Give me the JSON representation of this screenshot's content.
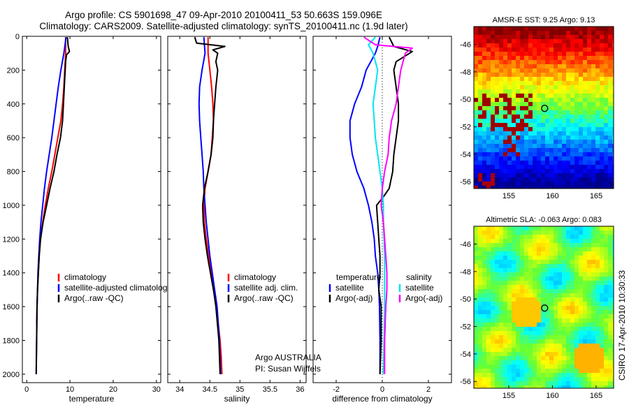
{
  "title": {
    "line1": "Argo profile: CS 5901698_47 09-Apr-2010 20100411_53 50.663S 159.096E",
    "line2": "Climatology: CARS2009. Satellite-adjusted climatology: synTS_20100411.nc (1.9d later)"
  },
  "annotation": {
    "program": "Argo AUSTRALIA",
    "pi": "PI: Susan Wijffels"
  },
  "side_stamp": "CSIRO 17-Apr-2010 10:30:33",
  "colors": {
    "red": "#ff0000",
    "blue": "#0000ff",
    "black": "#000000",
    "cyan": "#00e5ee",
    "magenta": "#ff00ff"
  },
  "chart_data": [
    {
      "id": "temperature",
      "type": "line",
      "xlabel": "temperature",
      "xlim": [
        -1,
        31
      ],
      "ylim": [
        2050,
        0
      ],
      "xticks": [
        0,
        10,
        20,
        30
      ],
      "yticks": [
        0,
        200,
        400,
        600,
        800,
        1000,
        1200,
        1400,
        1600,
        1800,
        2000
      ],
      "legend": {
        "placement": "lower-right",
        "entries": [
          "climatology",
          "satellite-adjusted climatology",
          "Argo(..raw -QC)"
        ]
      },
      "series": [
        {
          "name": "climatology",
          "color": "red",
          "y": [
            5,
            100,
            200,
            300,
            400,
            500,
            600,
            700,
            800,
            900,
            1000,
            1100,
            1200,
            1300,
            1400,
            1500,
            1600,
            1700
          ],
          "x": [
            9.0,
            9.0,
            8.8,
            8.6,
            8.3,
            7.9,
            7.2,
            6.5,
            5.8,
            5.0,
            4.3,
            3.7,
            3.2,
            2.9,
            2.7,
            2.5,
            2.4,
            2.3
          ]
        },
        {
          "name": "satellite-adjusted climatology",
          "color": "blue",
          "y": [
            5,
            100,
            200,
            300,
            400,
            500,
            600,
            700,
            800,
            900,
            1000,
            1100,
            1200,
            1300,
            1400,
            1500,
            1600,
            1800,
            2000
          ],
          "x": [
            9.1,
            8.6,
            7.9,
            7.3,
            6.8,
            6.3,
            5.8,
            5.2,
            4.6,
            4.1,
            3.7,
            3.3,
            3.0,
            2.8,
            2.6,
            2.5,
            2.4,
            2.3,
            2.2
          ]
        },
        {
          "name": "Argo(..raw -QC)",
          "color": "black",
          "y": [
            5,
            60,
            90,
            110,
            150,
            200,
            300,
            400,
            500,
            600,
            700,
            800,
            900,
            1000,
            1100,
            1200,
            1300,
            1400,
            1500,
            1600,
            1800,
            2000
          ],
          "x": [
            9.4,
            9.6,
            9.9,
            9.2,
            9.0,
            8.9,
            8.7,
            8.5,
            8.3,
            7.8,
            7.0,
            6.3,
            5.4,
            4.6,
            3.8,
            3.2,
            2.9,
            2.7,
            2.5,
            2.4,
            2.3,
            2.2
          ]
        }
      ]
    },
    {
      "id": "salinity",
      "type": "line",
      "xlabel": "salinity",
      "xlim": [
        33.8,
        36.1
      ],
      "ylim": [
        2050,
        0
      ],
      "xticks": [
        34,
        34.5,
        35,
        35.5,
        36
      ],
      "yticks": [
        0,
        200,
        400,
        600,
        800,
        1000,
        1200,
        1400,
        1600,
        1800,
        2000
      ],
      "legend": {
        "placement": "lower-right",
        "entries": [
          "climatology",
          "satellite adj. clim.",
          "Argo(..raw -QC)"
        ]
      },
      "series": [
        {
          "name": "climatology",
          "color": "red",
          "y": [
            5,
            100,
            200,
            300,
            400,
            500,
            600,
            700,
            800,
            900,
            1000,
            1100,
            1200,
            1300,
            1400,
            1500,
            1600,
            1700,
            1800,
            1900,
            2000
          ],
          "x": [
            34.47,
            34.47,
            34.5,
            34.53,
            34.55,
            34.56,
            34.54,
            34.52,
            34.47,
            34.42,
            34.4,
            34.41,
            34.44,
            34.48,
            34.53,
            34.57,
            34.61,
            34.64,
            34.67,
            34.69,
            34.7
          ]
        },
        {
          "name": "satellite adj. clim.",
          "color": "blue",
          "y": [
            5,
            100,
            200,
            300,
            400,
            500,
            600,
            700,
            800,
            900,
            1000,
            1100,
            1200,
            1300,
            1400,
            1500,
            1600,
            1700,
            1800,
            1900,
            2000
          ],
          "x": [
            34.4,
            34.42,
            34.37,
            34.33,
            34.32,
            34.33,
            34.35,
            34.37,
            34.39,
            34.4,
            34.42,
            34.44,
            34.47,
            34.5,
            34.54,
            34.58,
            34.62,
            34.64,
            34.66,
            34.67,
            34.68
          ]
        },
        {
          "name": "Argo(..raw -QC)",
          "color": "black",
          "y": [
            5,
            40,
            60,
            80,
            100,
            150,
            200,
            300,
            400,
            500,
            600,
            700,
            800,
            900,
            1000,
            1100,
            1200,
            1300,
            1400,
            1500,
            1600,
            1800,
            2000
          ],
          "x": [
            34.25,
            34.28,
            34.75,
            34.55,
            34.63,
            34.6,
            34.63,
            34.6,
            34.58,
            34.56,
            34.55,
            34.52,
            34.47,
            34.41,
            34.38,
            34.39,
            34.42,
            34.46,
            34.51,
            34.56,
            34.6,
            34.65,
            34.67
          ]
        }
      ]
    },
    {
      "id": "difference",
      "type": "line",
      "xlabel": "difference from climatology",
      "xlim": [
        -3,
        3
      ],
      "ylim": [
        2050,
        0
      ],
      "xticks": [
        -2,
        0,
        2
      ],
      "yticks": [
        0,
        200,
        400,
        600,
        800,
        1000,
        1200,
        1400,
        1600,
        1800,
        2000
      ],
      "legend": {
        "placement": "lower",
        "group_titles": [
          "temperature",
          "salinity"
        ],
        "entries": [
          "satellite",
          "Argo(-adj)",
          "satellite",
          "Argo(-adj)"
        ]
      },
      "series": [
        {
          "name": "satellite",
          "group": "temperature",
          "color": "blue",
          "y": [
            5,
            60,
            100,
            150,
            200,
            300,
            400,
            500,
            600,
            700,
            800,
            900,
            1000,
            1100,
            1200,
            1300,
            1400,
            1500,
            1600,
            1800,
            2000
          ],
          "x": [
            -0.1,
            -0.2,
            -0.3,
            -0.5,
            -0.7,
            -0.9,
            -1.2,
            -1.4,
            -1.4,
            -1.3,
            -1.1,
            -0.8,
            -0.6,
            -0.45,
            -0.35,
            -0.3,
            -0.2,
            -0.15,
            -0.12,
            -0.1,
            -0.1
          ]
        },
        {
          "name": "Argo(-adj)",
          "group": "temperature",
          "color": "black",
          "y": [
            5,
            60,
            90,
            150,
            200,
            300,
            400,
            500,
            600,
            700,
            800,
            900,
            950,
            1000,
            1100,
            1200,
            1300,
            1400,
            1500,
            1600,
            1800,
            2000
          ],
          "x": [
            0.3,
            0.5,
            1.3,
            0.6,
            0.5,
            0.6,
            0.7,
            0.7,
            0.6,
            0.5,
            0.45,
            0.3,
            0.05,
            -0.25,
            -0.2,
            -0.15,
            -0.1,
            -0.1,
            -0.15,
            -0.05,
            -0.05,
            -0.1
          ]
        },
        {
          "name": "satellite",
          "group": "salinity",
          "color": "cyan",
          "y": [
            5,
            50,
            100,
            200,
            300,
            400,
            500,
            600,
            700,
            800,
            900,
            1000,
            1100,
            1200,
            1300,
            1400,
            1500,
            1600,
            1800,
            2000
          ],
          "x": [
            -0.3,
            -0.6,
            -0.4,
            -0.2,
            -0.3,
            -0.4,
            -0.35,
            -0.3,
            -0.2,
            -0.1,
            0.0,
            0.05,
            0.05,
            0.08,
            0.1,
            0.1,
            0.1,
            0.1,
            0.08,
            0.05
          ]
        },
        {
          "name": "Argo(-adj)",
          "group": "salinity",
          "color": "magenta",
          "y": [
            5,
            50,
            70,
            100,
            150,
            200,
            300,
            400,
            500,
            600,
            700,
            800,
            900,
            1000,
            1100,
            1200,
            1300,
            1400,
            1500,
            1600,
            1800,
            2000
          ],
          "x": [
            -0.8,
            -0.3,
            1.3,
            1.0,
            0.9,
            0.8,
            0.7,
            0.6,
            0.4,
            0.3,
            0.25,
            0.1,
            0.0,
            -0.05,
            0.05,
            0.1,
            0.15,
            0.2,
            0.2,
            0.15,
            0.1,
            0.1
          ]
        }
      ]
    },
    {
      "id": "sst_map",
      "type": "heatmap",
      "title": "AMSR-E SST: 9.25 Argo: 9.13",
      "xlim": [
        151,
        167
      ],
      "ylim": [
        -56.5,
        -44.7
      ],
      "xticks": [
        155,
        160,
        165
      ],
      "yticks": [
        -46,
        -48,
        -50,
        -52,
        -54,
        -56
      ],
      "float_position": {
        "lon": 159.1,
        "lat": -50.66
      }
    },
    {
      "id": "sla_map",
      "type": "heatmap",
      "title": "Altimetric SLA: -0.063 Argo: 0.083",
      "xlim": [
        151,
        167
      ],
      "ylim": [
        -56.5,
        -44.7
      ],
      "xticks": [
        155,
        160,
        165
      ],
      "yticks": [
        -46,
        -48,
        -50,
        -52,
        -54,
        -56
      ],
      "float_position": {
        "lon": 159.1,
        "lat": -50.66
      }
    }
  ]
}
